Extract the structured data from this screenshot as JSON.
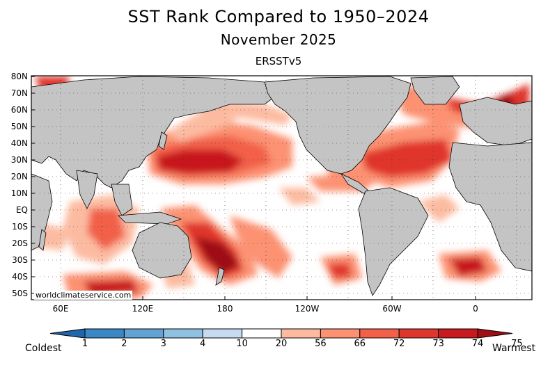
{
  "title": "SST Rank Compared to 1950–2024",
  "subtitle": "November 2025",
  "dataset": "ERSSTv5",
  "credit": "worldclimateservice.com",
  "lat_labels": [
    "80N",
    "70N",
    "60N",
    "50N",
    "40N",
    "30N",
    "20N",
    "10N",
    "EQ",
    "10S",
    "20S",
    "30S",
    "40S",
    "50S"
  ],
  "lon_labels": [
    "60E",
    "120E",
    "180",
    "120W",
    "60W",
    "0"
  ],
  "colorbar": {
    "low_label": "Coldest",
    "high_label": "Warmest",
    "boundaries": [
      "1",
      "2",
      "3",
      "4",
      "10",
      "20",
      "56",
      "66",
      "72",
      "73",
      "74",
      "75"
    ],
    "colors": [
      "#2166ac",
      "#3a87c4",
      "#62a3d4",
      "#8fc1e3",
      "#c6dbef",
      "#ffffff",
      "#fcbba1",
      "#fc9272",
      "#f2604a",
      "#e0352c",
      "#c8191e",
      "#9e0f16"
    ]
  },
  "colors": {
    "land": "#c4c4c4",
    "ocean": "#ffffff",
    "coast": "#000000"
  }
}
